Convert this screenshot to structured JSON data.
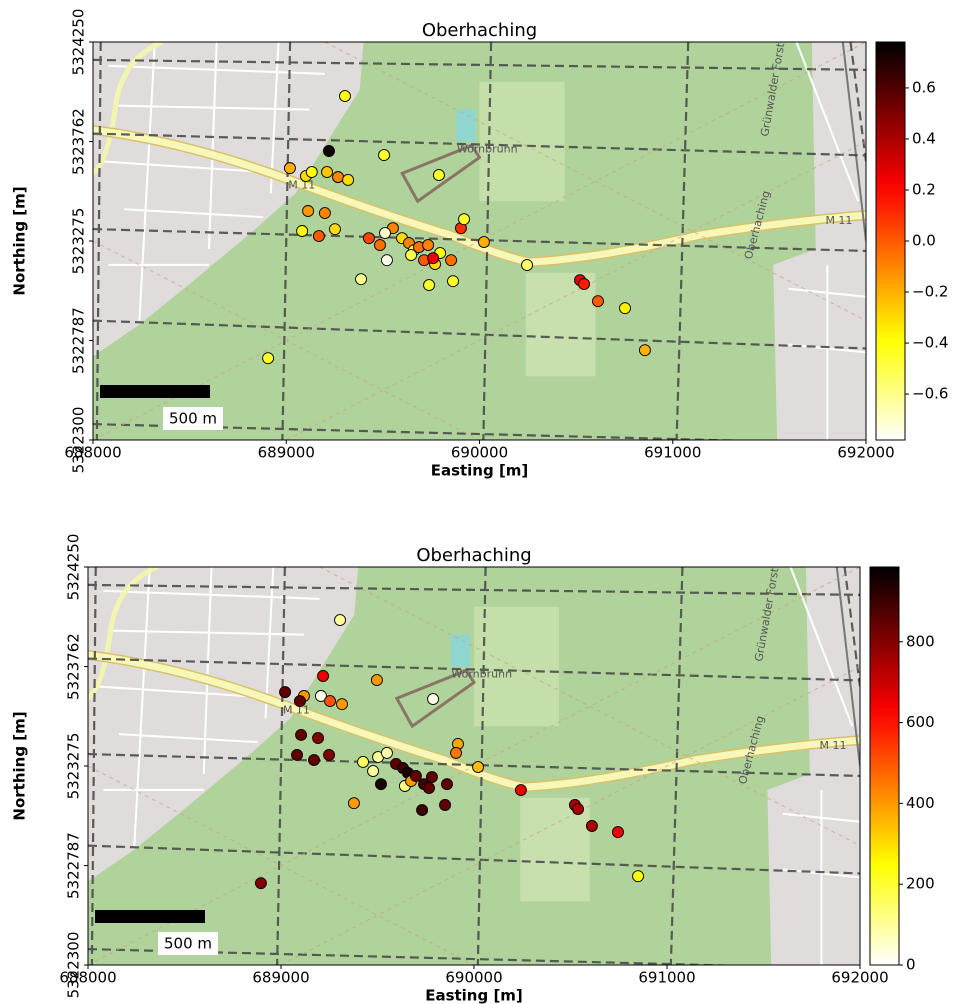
{
  "chart_data": [
    {
      "type": "scatter",
      "title": "Oberhaching",
      "xlabel": "Easting [m]",
      "ylabel": "Northing [m]",
      "xlim": [
        688000,
        692000
      ],
      "ylim": [
        5322300,
        5324250
      ],
      "xticks": [
        688000,
        689000,
        690000,
        691000,
        692000
      ],
      "yticks": [
        5322300,
        5322787,
        5323275,
        5323762,
        5324250
      ],
      "colormap": "hot_r",
      "clim": [
        -0.78,
        0.78
      ],
      "cticks": [
        {
          "value": -0.6,
          "label": "−0.6"
        },
        {
          "value": -0.4,
          "label": "−0.4"
        },
        {
          "value": -0.2,
          "label": "−0.2"
        },
        {
          "value": 0,
          "label": "0.0"
        },
        0.2,
        0.4,
        0.6
      ],
      "x": [
        689304,
        689221,
        689506,
        689019,
        689102,
        689132,
        689211,
        689268,
        689320,
        689790,
        689113,
        689200,
        689082,
        689169,
        689252,
        689428,
        689485,
        689552,
        689511,
        689599,
        689635,
        689661,
        689646,
        689687,
        689734,
        689713,
        689770,
        689796,
        689853,
        689760,
        689904,
        689920,
        690023,
        689521,
        689387,
        689739,
        689863,
        690246,
        690520,
        690541,
        690613,
        690753,
        690856,
        688906
      ],
      "y": [
        5323985,
        5323716,
        5323696,
        5323632,
        5323593,
        5323613,
        5323613,
        5323588,
        5323574,
        5323598,
        5323422,
        5323412,
        5323324,
        5323299,
        5323333,
        5323289,
        5323255,
        5323338,
        5323314,
        5323289,
        5323265,
        5323230,
        5323206,
        5323245,
        5323255,
        5323181,
        5323162,
        5323216,
        5323181,
        5323191,
        5323338,
        5323382,
        5323270,
        5323181,
        5323088,
        5323059,
        5323078,
        5323157,
        5323083,
        5323064,
        5322980,
        5322946,
        5322740,
        5322701
      ],
      "values": [
        -0.4,
        0.75,
        -0.45,
        -0.2,
        -0.3,
        -0.4,
        -0.25,
        -0.1,
        -0.3,
        -0.45,
        -0.15,
        -0.1,
        -0.4,
        0,
        -0.3,
        0.05,
        -0.05,
        -0.1,
        -0.7,
        -0.3,
        -0.1,
        -0.45,
        -0.5,
        -0.05,
        -0.1,
        0,
        -0.3,
        -0.4,
        -0.05,
        0.25,
        0.1,
        -0.45,
        -0.2,
        -0.75,
        -0.6,
        -0.45,
        -0.45,
        -0.55,
        0.25,
        0.15,
        0,
        -0.35,
        -0.2,
        -0.45
      ],
      "scale_bar_label": "500 m",
      "map_labels": [
        "M 11",
        "M 11",
        "Wörnbrunn",
        "Grünwalder Forst",
        "Oberhaching"
      ]
    },
    {
      "type": "scatter",
      "title": "Oberhaching",
      "xlabel": "Easting [m]",
      "ylabel": "Northing [m]",
      "xlim": [
        688000,
        692000
      ],
      "ylim": [
        5322300,
        5324250
      ],
      "xticks": [
        688000,
        689000,
        690000,
        691000,
        692000
      ],
      "yticks": [
        5322300,
        5322787,
        5323275,
        5323762,
        5324250
      ],
      "colormap": "hot_r",
      "clim": [
        0,
        985
      ],
      "cticks": [
        0,
        200,
        400,
        600,
        800
      ],
      "x": [
        689306,
        689021,
        689119,
        689098,
        689207,
        689218,
        689254,
        689316,
        689497,
        689788,
        689104,
        689192,
        689083,
        689171,
        689249,
        689425,
        689477,
        689503,
        689549,
        689518,
        689596,
        689632,
        689658,
        689642,
        689674,
        689699,
        689741,
        689767,
        689782,
        689860,
        689917,
        689907,
        690021,
        689731,
        689850,
        689378,
        690243,
        690523,
        690539,
        690611,
        690746,
        690850,
        688896
      ],
      "y": [
        5323990,
        5323637,
        5323618,
        5323593,
        5323618,
        5323716,
        5323593,
        5323578,
        5323696,
        5323603,
        5323427,
        5323412,
        5323329,
        5323304,
        5323329,
        5323295,
        5323250,
        5323319,
        5323339,
        5323186,
        5323285,
        5323265,
        5323241,
        5323177,
        5323201,
        5323226,
        5323186,
        5323167,
        5323221,
        5323186,
        5323383,
        5323339,
        5323270,
        5323059,
        5323084,
        5323093,
        5323157,
        5323084,
        5323064,
        5322981,
        5322951,
        5322735,
        5322701
      ],
      "values": [
        100,
        850,
        400,
        850,
        20,
        650,
        500,
        400,
        400,
        20,
        850,
        800,
        850,
        850,
        800,
        150,
        100,
        100,
        80,
        950,
        850,
        900,
        950,
        120,
        400,
        850,
        900,
        850,
        850,
        850,
        380,
        450,
        350,
        900,
        850,
        400,
        650,
        750,
        750,
        750,
        650,
        250,
        800
      ],
      "scale_bar_label": "500 m",
      "map_labels": [
        "M 11",
        "M 11",
        "Wörnbrunn",
        "Grünwalder Forst",
        "Oberhaching"
      ]
    }
  ]
}
